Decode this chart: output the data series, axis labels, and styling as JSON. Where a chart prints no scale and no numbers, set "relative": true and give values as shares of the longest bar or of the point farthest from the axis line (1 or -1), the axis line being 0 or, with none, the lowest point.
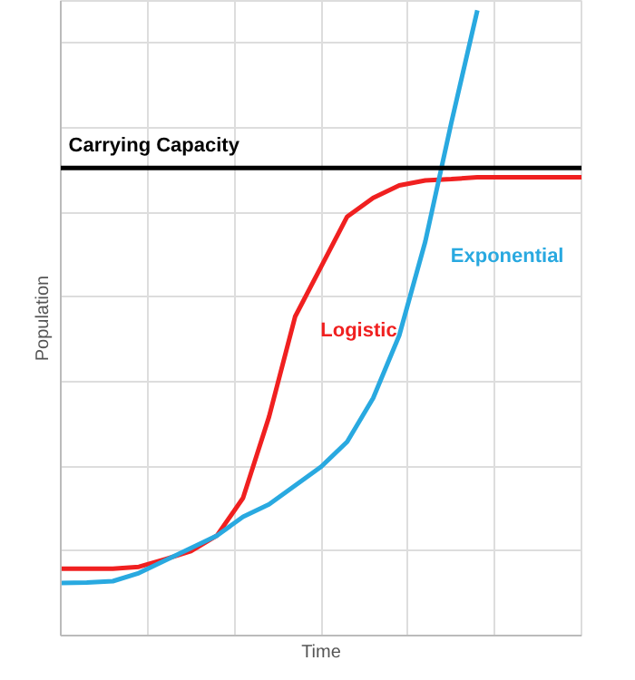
{
  "chart_data": {
    "type": "line",
    "relative": true,
    "xlabel": "Time",
    "ylabel": "Population",
    "categories": [
      null,
      null,
      null,
      null,
      null,
      null,
      null,
      null,
      null,
      null,
      null,
      null,
      null,
      null,
      null,
      null,
      null,
      null,
      null,
      null,
      null
    ],
    "series": [
      {
        "name": "Logistic",
        "color": "#f02020",
        "values": [
          0.107,
          0.107,
          0.107,
          0.11,
          0.122,
          0.135,
          0.16,
          0.22,
          0.35,
          0.51,
          0.59,
          0.67,
          0.7,
          0.72,
          0.728,
          0.73,
          0.733,
          0.733,
          0.733,
          0.733,
          0.733
        ]
      },
      {
        "name": "Exponential",
        "color": "#29a9e0",
        "values": [
          0.084,
          0.085,
          0.087,
          0.1,
          0.12,
          0.14,
          0.16,
          0.19,
          0.21,
          0.24,
          0.27,
          0.31,
          0.38,
          0.48,
          0.63,
          0.82,
          1.0,
          null,
          null,
          null,
          null
        ]
      }
    ],
    "ref_lines": [
      {
        "axis": "y",
        "value": 0.748,
        "label": "Carrying Capacity",
        "color": "#000000"
      }
    ],
    "grid": true,
    "marker": "none",
    "line_style": "solid"
  }
}
